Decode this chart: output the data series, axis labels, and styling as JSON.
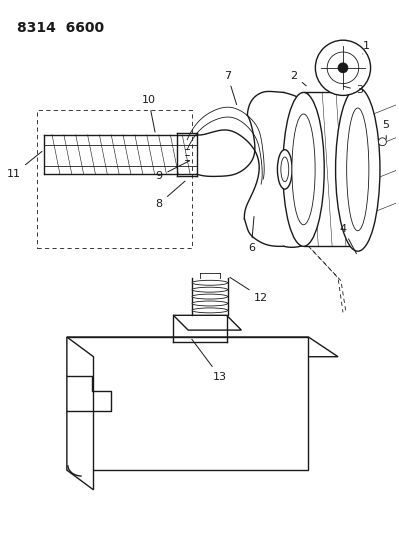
{
  "title": "8314  6600",
  "bg_color": "#ffffff",
  "line_color": "#1a1a1a",
  "title_fontsize": 10,
  "label_fontsize": 8,
  "figsize": [
    3.99,
    5.33
  ],
  "dpi": 100
}
